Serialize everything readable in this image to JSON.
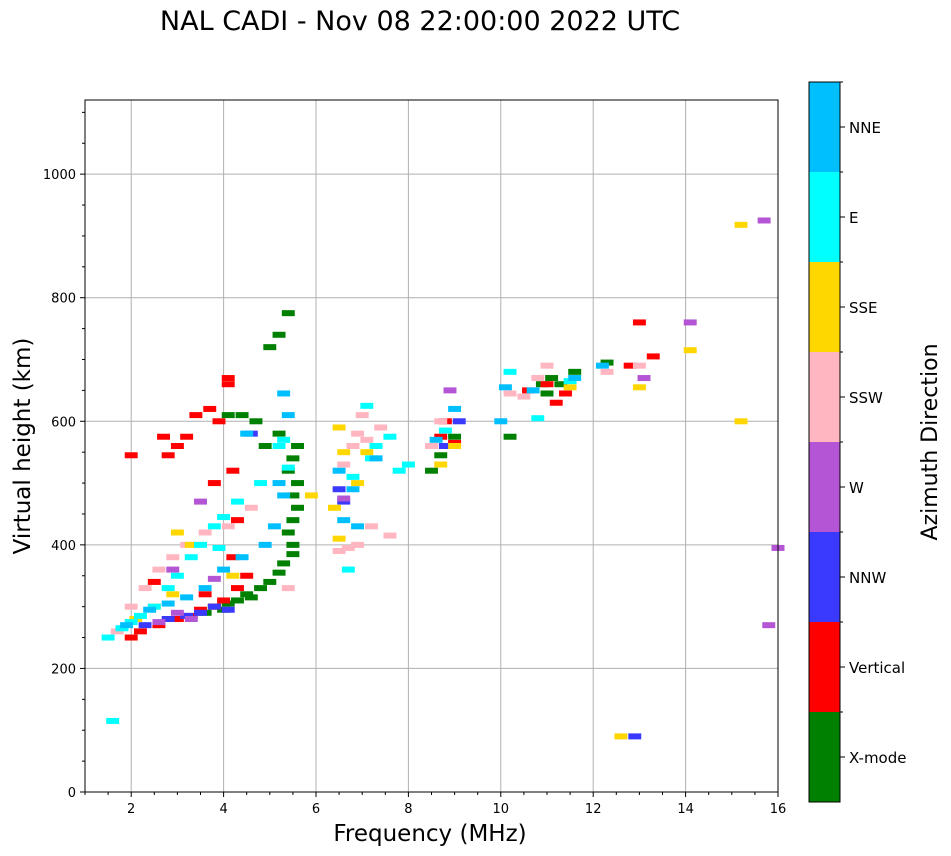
{
  "chart_data": {
    "type": "scatter",
    "title": "NAL CADI - Nov 08 22:00:00 2022 UTC",
    "xlabel": "Frequency (MHz)",
    "ylabel": "Virtual height (km)",
    "xlim": [
      1,
      16
    ],
    "ylim": [
      0,
      1120
    ],
    "xticks": [
      2,
      4,
      6,
      8,
      10,
      12,
      14,
      16
    ],
    "yticks": [
      0,
      200,
      400,
      600,
      800,
      1000
    ],
    "grid": true,
    "colorbar": {
      "label": "Azimuth Direction",
      "categories": [
        {
          "name": "X-mode",
          "color": "#008000"
        },
        {
          "name": "Vertical",
          "color": "#ff0000"
        },
        {
          "name": "NNW",
          "color": "#3a3aff"
        },
        {
          "name": "W",
          "color": "#b455d6"
        },
        {
          "name": "SSW",
          "color": "#ffb6c1"
        },
        {
          "name": "SSE",
          "color": "#ffd700"
        },
        {
          "name": "E",
          "color": "#00ffff"
        },
        {
          "name": "NNE",
          "color": "#00bfff"
        }
      ]
    },
    "series": [
      {
        "name": "X-mode",
        "points": [
          [
            3.6,
            290
          ],
          [
            3.8,
            300
          ],
          [
            4.0,
            295
          ],
          [
            4.1,
            305
          ],
          [
            4.3,
            310
          ],
          [
            4.5,
            320
          ],
          [
            4.6,
            315
          ],
          [
            4.8,
            330
          ],
          [
            5.0,
            340
          ],
          [
            5.2,
            355
          ],
          [
            5.3,
            370
          ],
          [
            5.5,
            385
          ],
          [
            5.5,
            400
          ],
          [
            5.4,
            420
          ],
          [
            5.5,
            440
          ],
          [
            5.6,
            460
          ],
          [
            5.5,
            480
          ],
          [
            5.6,
            500
          ],
          [
            5.4,
            520
          ],
          [
            5.5,
            540
          ],
          [
            5.6,
            560
          ],
          [
            5.0,
            720
          ],
          [
            5.4,
            775
          ],
          [
            5.2,
            740
          ],
          [
            4.4,
            610
          ],
          [
            4.1,
            610
          ],
          [
            8.5,
            520
          ],
          [
            8.7,
            545
          ],
          [
            9.0,
            575
          ],
          [
            10.2,
            575
          ],
          [
            10.9,
            660
          ],
          [
            11.1,
            670
          ],
          [
            11.3,
            660
          ],
          [
            11.6,
            680
          ],
          [
            12.3,
            695
          ],
          [
            11.0,
            645
          ],
          [
            5.2,
            580
          ],
          [
            4.9,
            560
          ],
          [
            4.7,
            600
          ]
        ]
      },
      {
        "name": "Vertical",
        "points": [
          [
            2.0,
            250
          ],
          [
            2.2,
            260
          ],
          [
            2.6,
            270
          ],
          [
            3.0,
            280
          ],
          [
            3.3,
            285
          ],
          [
            3.5,
            295
          ],
          [
            3.8,
            300
          ],
          [
            4.0,
            310
          ],
          [
            4.3,
            330
          ],
          [
            4.5,
            350
          ],
          [
            3.6,
            320
          ],
          [
            2.5,
            340
          ],
          [
            4.2,
            380
          ],
          [
            4.3,
            440
          ],
          [
            3.8,
            500
          ],
          [
            4.2,
            520
          ],
          [
            3.4,
            610
          ],
          [
            3.7,
            620
          ],
          [
            3.9,
            600
          ],
          [
            4.1,
            670
          ],
          [
            4.1,
            660
          ],
          [
            2.8,
            545
          ],
          [
            2.7,
            575
          ],
          [
            2.0,
            545
          ],
          [
            3.0,
            560
          ],
          [
            3.2,
            575
          ],
          [
            9.0,
            565
          ],
          [
            8.8,
            600
          ],
          [
            8.7,
            575
          ],
          [
            11.0,
            660
          ],
          [
            11.4,
            645
          ],
          [
            13.0,
            760
          ],
          [
            13.3,
            705
          ],
          [
            12.8,
            690
          ],
          [
            10.6,
            650
          ],
          [
            11.2,
            630
          ]
        ]
      },
      {
        "name": "NNW",
        "points": [
          [
            2.3,
            270
          ],
          [
            2.8,
            280
          ],
          [
            3.2,
            285
          ],
          [
            3.5,
            290
          ],
          [
            3.8,
            300
          ],
          [
            4.1,
            295
          ],
          [
            6.6,
            470
          ],
          [
            6.5,
            490
          ],
          [
            8.8,
            560
          ],
          [
            12.9,
            90
          ],
          [
            4.6,
            580
          ],
          [
            9.1,
            600
          ]
        ]
      },
      {
        "name": "W",
        "points": [
          [
            2.6,
            275
          ],
          [
            3.0,
            290
          ],
          [
            3.3,
            280
          ],
          [
            3.5,
            470
          ],
          [
            2.9,
            360
          ],
          [
            15.8,
            270
          ],
          [
            15.7,
            925
          ],
          [
            16.0,
            395
          ],
          [
            13.1,
            670
          ],
          [
            14.1,
            760
          ],
          [
            8.9,
            650
          ],
          [
            6.6,
            475
          ],
          [
            3.8,
            345
          ]
        ]
      },
      {
        "name": "SSW",
        "points": [
          [
            1.7,
            260
          ],
          [
            2.0,
            300
          ],
          [
            2.3,
            330
          ],
          [
            2.6,
            360
          ],
          [
            2.9,
            380
          ],
          [
            3.2,
            400
          ],
          [
            3.6,
            420
          ],
          [
            4.1,
            430
          ],
          [
            4.6,
            460
          ],
          [
            5.4,
            330
          ],
          [
            6.5,
            390
          ],
          [
            6.7,
            395
          ],
          [
            6.9,
            400
          ],
          [
            7.2,
            430
          ],
          [
            7.6,
            415
          ],
          [
            6.6,
            530
          ],
          [
            6.8,
            560
          ],
          [
            7.1,
            570
          ],
          [
            7.4,
            590
          ],
          [
            8.7,
            600
          ],
          [
            8.5,
            560
          ],
          [
            10.2,
            645
          ],
          [
            10.5,
            640
          ],
          [
            11.0,
            690
          ],
          [
            12.3,
            680
          ],
          [
            13.0,
            690
          ],
          [
            10.8,
            670
          ],
          [
            6.9,
            580
          ],
          [
            7.0,
            610
          ]
        ]
      },
      {
        "name": "SSE",
        "points": [
          [
            2.1,
            280
          ],
          [
            2.5,
            300
          ],
          [
            2.9,
            320
          ],
          [
            3.3,
            400
          ],
          [
            3.0,
            420
          ],
          [
            4.2,
            350
          ],
          [
            6.4,
            460
          ],
          [
            6.5,
            410
          ],
          [
            6.6,
            550
          ],
          [
            6.9,
            500
          ],
          [
            7.1,
            550
          ],
          [
            8.7,
            530
          ],
          [
            9.0,
            560
          ],
          [
            11.5,
            655
          ],
          [
            13.0,
            655
          ],
          [
            14.1,
            715
          ],
          [
            15.2,
            600
          ],
          [
            15.2,
            918
          ],
          [
            12.6,
            90
          ],
          [
            6.5,
            590
          ],
          [
            5.9,
            480
          ]
        ]
      },
      {
        "name": "E",
        "points": [
          [
            1.5,
            250
          ],
          [
            1.8,
            265
          ],
          [
            2.0,
            275
          ],
          [
            2.2,
            285
          ],
          [
            2.5,
            300
          ],
          [
            2.8,
            330
          ],
          [
            3.0,
            350
          ],
          [
            3.3,
            380
          ],
          [
            3.5,
            400
          ],
          [
            3.8,
            430
          ],
          [
            4.0,
            445
          ],
          [
            4.3,
            470
          ],
          [
            4.8,
            500
          ],
          [
            5.4,
            525
          ],
          [
            5.2,
            560
          ],
          [
            6.7,
            360
          ],
          [
            7.2,
            540
          ],
          [
            7.3,
            560
          ],
          [
            7.6,
            575
          ],
          [
            8.0,
            530
          ],
          [
            7.8,
            520
          ],
          [
            8.8,
            585
          ],
          [
            10.2,
            680
          ],
          [
            10.8,
            605
          ],
          [
            11.5,
            665
          ],
          [
            1.6,
            115
          ],
          [
            6.8,
            510
          ],
          [
            7.1,
            625
          ],
          [
            5.3,
            570
          ],
          [
            3.9,
            395
          ]
        ]
      },
      {
        "name": "NNE",
        "points": [
          [
            1.9,
            270
          ],
          [
            2.4,
            295
          ],
          [
            2.8,
            305
          ],
          [
            3.2,
            315
          ],
          [
            3.6,
            330
          ],
          [
            4.0,
            360
          ],
          [
            4.4,
            380
          ],
          [
            4.9,
            400
          ],
          [
            5.1,
            430
          ],
          [
            5.3,
            480
          ],
          [
            5.2,
            500
          ],
          [
            5.4,
            610
          ],
          [
            5.3,
            645
          ],
          [
            4.5,
            580
          ],
          [
            6.6,
            440
          ],
          [
            6.9,
            430
          ],
          [
            7.3,
            540
          ],
          [
            8.6,
            570
          ],
          [
            9.0,
            620
          ],
          [
            10.0,
            600
          ],
          [
            10.1,
            655
          ],
          [
            10.7,
            650
          ],
          [
            11.6,
            670
          ],
          [
            12.2,
            690
          ],
          [
            6.5,
            520
          ],
          [
            6.8,
            490
          ]
        ]
      }
    ]
  }
}
